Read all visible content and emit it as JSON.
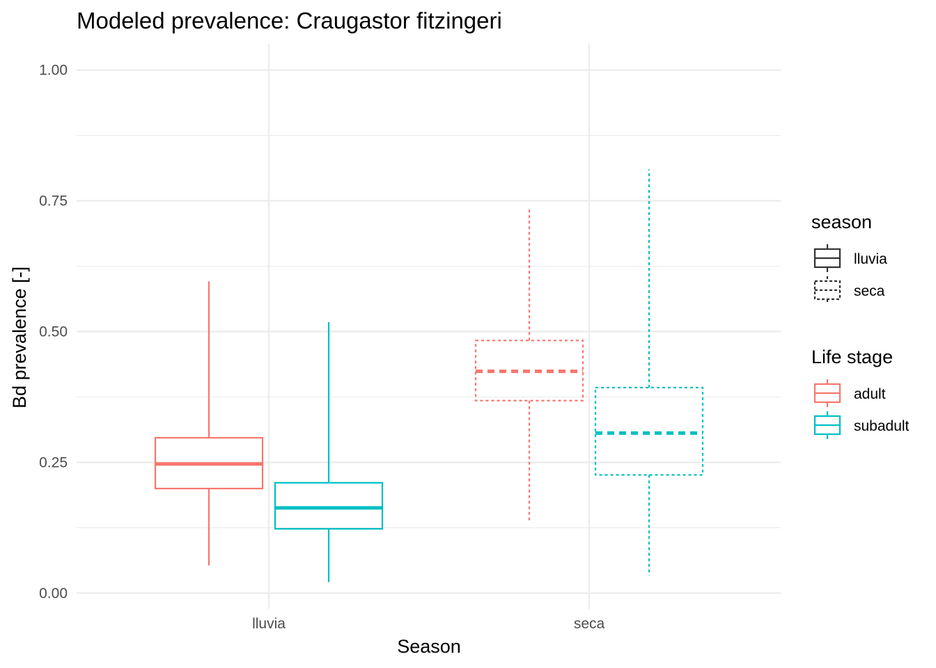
{
  "chart_data": {
    "type": "boxplot",
    "title": "Modeled prevalence: Craugastor fitzingeri",
    "xlabel": "Season",
    "ylabel": "Bd prevalence [-]",
    "categories": [
      "lluvia",
      "seca"
    ],
    "ylim": [
      -0.03,
      1.05
    ],
    "yticks": [
      "0.00",
      "0.25",
      "0.50",
      "0.75",
      "1.00"
    ],
    "grid": true,
    "legend_position": "right",
    "colors": {
      "adult": "#F8766D",
      "subadult": "#00BFC4"
    },
    "series": [
      {
        "name": "adult",
        "boxes": [
          {
            "category": "lluvia",
            "season": "lluvia",
            "min": 0.053,
            "q1": 0.2,
            "median": 0.247,
            "q3": 0.297,
            "max": 0.596
          },
          {
            "category": "seca",
            "season": "seca",
            "min": 0.135,
            "q1": 0.368,
            "median": 0.424,
            "q3": 0.483,
            "max": 0.738
          }
        ]
      },
      {
        "name": "subadult",
        "boxes": [
          {
            "category": "lluvia",
            "season": "lluvia",
            "min": 0.021,
            "q1": 0.123,
            "median": 0.163,
            "q3": 0.211,
            "max": 0.518
          },
          {
            "category": "seca",
            "season": "seca",
            "min": 0.034,
            "q1": 0.226,
            "median": 0.306,
            "q3": 0.393,
            "max": 0.81
          }
        ]
      }
    ],
    "legends": [
      {
        "title": "season",
        "items": [
          {
            "label": "lluvia",
            "linetype": "solid"
          },
          {
            "label": "seca",
            "linetype": "dotted"
          }
        ]
      },
      {
        "title": "Life stage",
        "items": [
          {
            "label": "adult",
            "color": "#F8766D"
          },
          {
            "label": "subadult",
            "color": "#00BFC4"
          }
        ]
      }
    ]
  }
}
